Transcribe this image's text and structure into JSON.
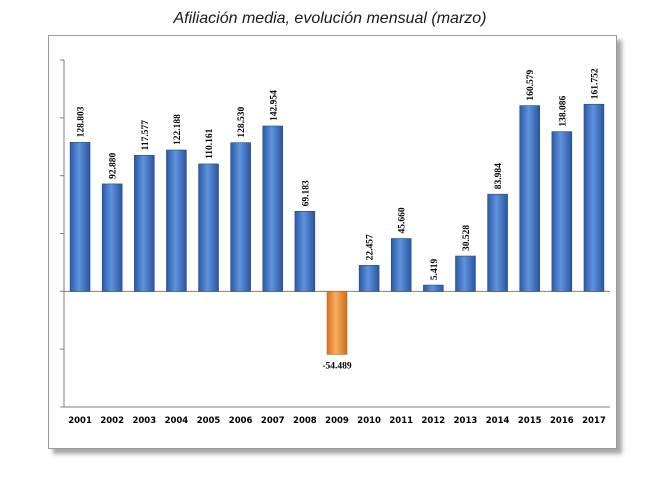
{
  "title": "Afiliación media, evolución mensual (marzo)",
  "chart_data": {
    "type": "bar",
    "title": "Afiliación media, evolución mensual (marzo)",
    "xlabel": "",
    "ylabel": "",
    "ylim": [
      -100000,
      200000
    ],
    "grid": false,
    "categories": [
      "2001",
      "2002",
      "2003",
      "2004",
      "2005",
      "2006",
      "2007",
      "2008",
      "2009",
      "2010",
      "2011",
      "2012",
      "2013",
      "2014",
      "2015",
      "2016",
      "2017"
    ],
    "values": [
      128803,
      92880,
      117577,
      122188,
      110161,
      128530,
      142954,
      69183,
      -54489,
      22457,
      45660,
      5419,
      30528,
      83984,
      160579,
      138086,
      161752
    ],
    "labels": [
      "128.803",
      "92.880",
      "117.577",
      "122.188",
      "110.161",
      "128.530",
      "142.954",
      "69.183",
      "-54.489",
      "22.457",
      "45.660",
      "5.419",
      "30.528",
      "83.984",
      "160.579",
      "138.086",
      "161.752"
    ],
    "colors": {
      "positive": "#3f74c4",
      "negative": "#f0913a"
    }
  }
}
